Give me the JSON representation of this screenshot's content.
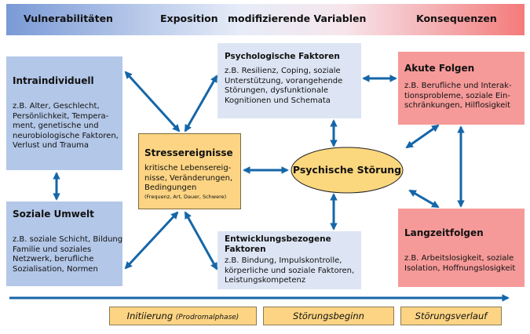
{
  "header": {
    "vulnerabilities": "Vulnerabilitäten",
    "exposure": "Exposition",
    "moderating": "modifizierende Variablen",
    "consequences": "Konsequenzen"
  },
  "intraindividual": {
    "title": "Intraindividuell",
    "lines": [
      "z.B. Alter, Geschlecht,",
      "Persönlichkeit, Tempera-",
      "ment, genetische und",
      "neurobiologische Faktoren,",
      "Verlust und Trauma"
    ]
  },
  "social": {
    "title": "Soziale Umwelt",
    "lines": [
      "z.B. soziale Schicht, Bildung,",
      "Familie und soziales",
      "Netzwerk, berufliche",
      "Sozialisation, Normen"
    ]
  },
  "stress": {
    "title": "Stressereignisse",
    "lines": [
      "kritische Lebensereig-",
      "nisse, Veränderungen,",
      "Bedingungen"
    ],
    "note": "(Frequenz, Art, Dauer, Schwere)"
  },
  "psych": {
    "title": "Psychologische Faktoren",
    "lines": [
      "z.B. Resilienz, Coping, soziale",
      "Unterstützung, vorangehende",
      "Störungen, dysfunktionale",
      "Kognitionen und Schemata"
    ]
  },
  "dev": {
    "title_lines": [
      "Entwicklungsbezogene",
      "Faktoren"
    ],
    "lines": [
      "z.B. Bindung, Impulskontrolle,",
      "körperliche und soziale Faktoren,",
      "Leistungskompetenz"
    ]
  },
  "disorder": {
    "label": "Psychische Störung"
  },
  "acute": {
    "title": "Akute Folgen",
    "lines": [
      "z.B. Berufliche und Interak-",
      "tionsprobleme, soziale Ein-",
      "schränkungen, Hilflosigkeit"
    ]
  },
  "longterm": {
    "title": "Langzeitfolgen",
    "lines": [
      "z.B. Arbeitslosigkeit, soziale",
      "Isolation, Hoffnungslosigkeit"
    ]
  },
  "phases": {
    "initiation": "Initiierung",
    "initiation_sub": "(Prodromalphase)",
    "onset": "Störungsbeginn",
    "course": "Störungsverlauf"
  },
  "colors": {
    "arrow": "#1566a8",
    "blue_box": "#b3c7e8",
    "light_blue_box": "#dde5f4",
    "orange_box": "#fcd483",
    "red_box": "#f59a99",
    "ellipse": "#fbd77e"
  }
}
